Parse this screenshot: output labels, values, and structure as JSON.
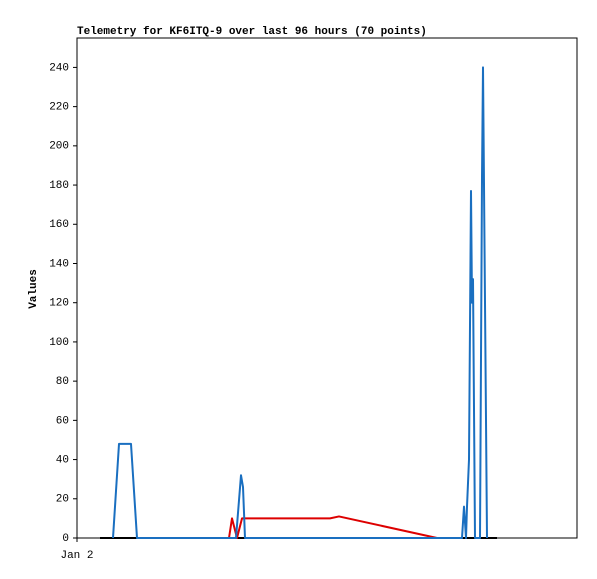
{
  "chart_data": {
    "type": "line",
    "title": "Telemetry for KF6ITQ-9 over last 96 hours (70 points)",
    "ylabel": "Values",
    "xlim": [
      0,
      500
    ],
    "xticks": [
      {
        "value": 0,
        "label": "Jan 2"
      }
    ],
    "ylim": [
      0,
      255
    ],
    "yticks": [
      0,
      20,
      40,
      60,
      80,
      100,
      120,
      140,
      160,
      180,
      200,
      220,
      240
    ],
    "series": [
      {
        "color": "#000000",
        "x": [
          23,
          420
        ],
        "values": [
          0,
          0
        ]
      },
      {
        "color": "#dd0000",
        "x": [
          152,
          155,
          160,
          165,
          253,
          262,
          360
        ],
        "values": [
          0,
          10,
          0,
          10,
          10,
          11,
          0
        ]
      },
      {
        "color": "#1a6fc0",
        "x": [
          36,
          42,
          54,
          60,
          159,
          164,
          166,
          168,
          385,
          387,
          389,
          390,
          392,
          394,
          395,
          396,
          398,
          403,
          405,
          406,
          407,
          409,
          410
        ],
        "values": [
          0,
          48,
          48,
          0,
          0,
          32,
          26,
          0,
          0,
          16,
          0,
          16,
          40,
          177,
          120,
          132,
          0,
          0,
          184,
          240,
          180,
          60,
          0
        ]
      }
    ]
  }
}
